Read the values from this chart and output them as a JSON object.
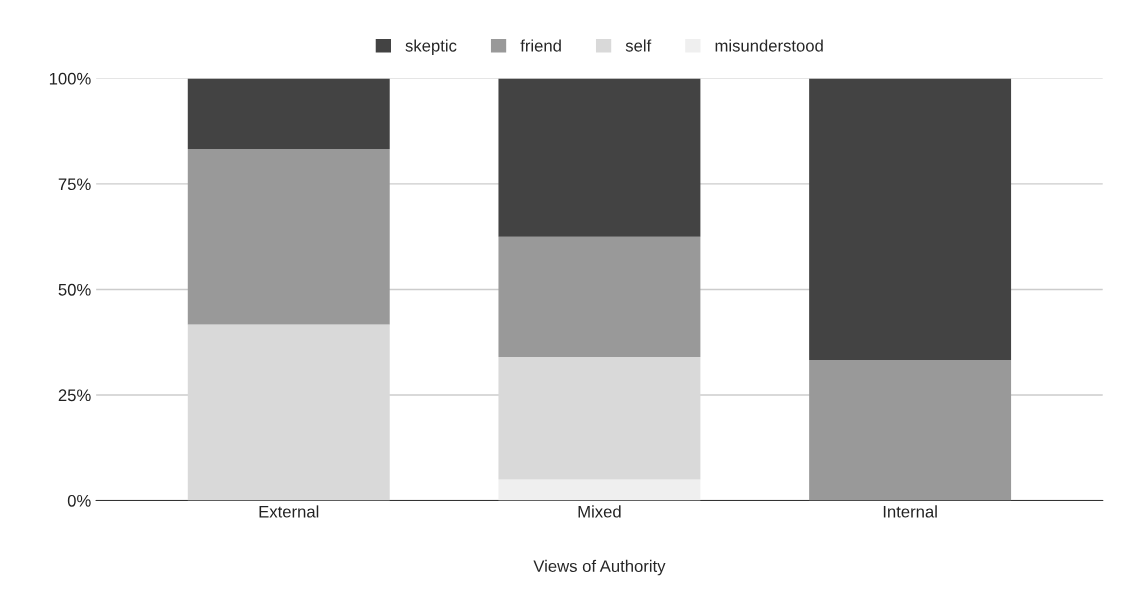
{
  "chart_data": {
    "type": "bar",
    "stacked": true,
    "xlabel": "Views of Authority",
    "categories": [
      "External",
      "Mixed",
      "Internal"
    ],
    "series": [
      {
        "name": "misunderstood",
        "color": "#efefef",
        "values": [
          0,
          5,
          0
        ]
      },
      {
        "name": "self",
        "color": "#d9d9d9",
        "values": [
          41.7,
          29,
          0
        ]
      },
      {
        "name": "friend",
        "color": "#999999",
        "values": [
          41.6,
          28.5,
          33.3
        ]
      },
      {
        "name": "skeptic",
        "color": "#434343",
        "values": [
          16.7,
          37.5,
          66.7
        ]
      }
    ],
    "ylim": [
      0,
      100
    ],
    "yticks": [
      {
        "value": 0,
        "label": "0%"
      },
      {
        "value": 25,
        "label": "25%"
      },
      {
        "value": 50,
        "label": "50%"
      },
      {
        "value": 75,
        "label": "75%"
      },
      {
        "value": 100,
        "label": "100%"
      }
    ],
    "grid": "y",
    "legend": "top"
  }
}
